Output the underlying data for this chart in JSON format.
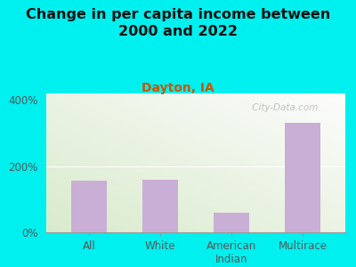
{
  "title": "Change in per capita income between\n2000 and 2022",
  "subtitle": "Dayton, IA",
  "categories": [
    "All",
    "White",
    "American\nIndian",
    "Multirace"
  ],
  "values": [
    155,
    160,
    60,
    330
  ],
  "bar_color": "#c9aed6",
  "background_outer": "#00efef",
  "background_inner_top_left": "#d8e8c8",
  "background_inner_bottom_right": "#f8fdf4",
  "yticks": [
    0,
    200,
    400
  ],
  "ylim": [
    0,
    420
  ],
  "title_fontsize": 11.5,
  "subtitle_fontsize": 10,
  "tick_fontsize": 8.5,
  "watermark": " City-Data.com",
  "title_color": "#111111",
  "subtitle_color": "#cc5500"
}
